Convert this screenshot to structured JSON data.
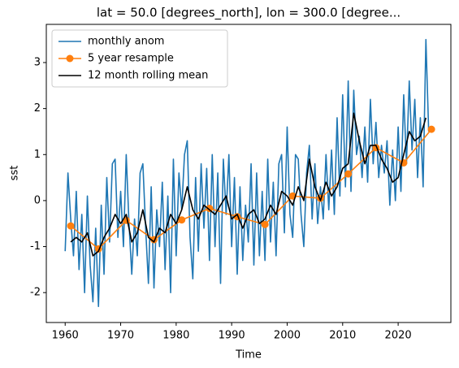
{
  "chart_data": {
    "type": "line",
    "title": "lat = 50.0 [degrees_north], lon = 300.0 [degree...",
    "xlabel": "Time",
    "ylabel": "sst",
    "xlim": [
      1956.6,
      2029.5
    ],
    "ylim": [
      -2.65,
      3.83
    ],
    "xticks": [
      1960,
      1970,
      1980,
      1990,
      2000,
      2010,
      2020
    ],
    "yticks": [
      -2,
      -1,
      0,
      1,
      2,
      3
    ],
    "legend": "upper left",
    "series": [
      {
        "name": "monthly anom",
        "color": "#1f77b4",
        "marker": false,
        "x": [
          1960,
          1960.5,
          1961,
          1961.5,
          1962,
          1962.5,
          1963,
          1963.5,
          1964,
          1964.5,
          1965,
          1965.5,
          1966,
          1966.5,
          1967,
          1967.5,
          1968,
          1968.5,
          1969,
          1969.5,
          1970,
          1970.5,
          1971,
          1971.5,
          1972,
          1972.5,
          1973,
          1973.5,
          1974,
          1974.5,
          1975,
          1975.5,
          1976,
          1976.5,
          1977,
          1977.5,
          1978,
          1978.5,
          1979,
          1979.5,
          1980,
          1980.5,
          1981,
          1981.5,
          1982,
          1982.5,
          1983,
          1983.5,
          1984,
          1984.5,
          1985,
          1985.5,
          1986,
          1986.5,
          1987,
          1987.5,
          1988,
          1988.5,
          1989,
          1989.5,
          1990,
          1990.5,
          1991,
          1991.5,
          1992,
          1992.5,
          1993,
          1993.5,
          1994,
          1994.5,
          1995,
          1995.5,
          1996,
          1996.5,
          1997,
          1997.5,
          1998,
          1998.5,
          1999,
          1999.5,
          2000,
          2000.5,
          2001,
          2001.5,
          2002,
          2002.5,
          2003,
          2003.5,
          2004,
          2004.5,
          2005,
          2005.5,
          2006,
          2006.5,
          2007,
          2007.5,
          2008,
          2008.5,
          2009,
          2009.5,
          2010,
          2010.5,
          2011,
          2011.5,
          2012,
          2012.5,
          2013,
          2013.5,
          2014,
          2014.5,
          2015,
          2015.5,
          2016,
          2016.5,
          2017,
          2017.5,
          2018,
          2018.5,
          2019,
          2019.5,
          2020,
          2020.5,
          2021,
          2021.5,
          2022,
          2022.5,
          2023,
          2023.5,
          2024,
          2024.5,
          2025,
          2025.5
        ],
        "values": [
          -1.1,
          0.6,
          -0.4,
          -1.2,
          0.2,
          -1.5,
          -0.3,
          -2.0,
          0.1,
          -1.4,
          -2.2,
          -0.6,
          -2.3,
          -0.1,
          -1.6,
          0.5,
          -0.9,
          0.8,
          0.9,
          -0.8,
          0.2,
          -1.0,
          1.0,
          -0.5,
          -1.6,
          -0.4,
          -1.2,
          0.6,
          0.8,
          -0.6,
          -1.8,
          0.3,
          -1.9,
          -0.2,
          -1.0,
          0.4,
          -1.5,
          0.1,
          -2.0,
          0.9,
          -1.2,
          0.6,
          -0.2,
          1.0,
          1.3,
          -0.8,
          -1.7,
          0.5,
          -1.1,
          0.8,
          -0.6,
          0.7,
          -1.3,
          1.0,
          -1.0,
          0.6,
          -1.8,
          0.9,
          -0.3,
          1.0,
          -1.0,
          0.5,
          -1.6,
          0.3,
          -1.3,
          -0.1,
          -0.9,
          0.8,
          -1.4,
          0.6,
          -1.2,
          0.2,
          -1.3,
          0.9,
          -0.9,
          0.4,
          -1.2,
          0.8,
          1.0,
          -0.7,
          1.6,
          -0.3,
          -0.8,
          1.0,
          0.9,
          -0.3,
          -1.0,
          0.6,
          1.2,
          -0.4,
          0.8,
          -0.5,
          0.3,
          -0.4,
          1.0,
          -0.2,
          1.1,
          -0.3,
          1.8,
          0.1,
          2.3,
          0.3,
          2.6,
          0.2,
          2.4,
          1.0,
          1.4,
          0.5,
          1.6,
          0.4,
          2.2,
          0.8,
          1.7,
          0.5,
          1.2,
          0.6,
          1.3,
          -0.1,
          1.1,
          0.0,
          1.6,
          0.2,
          2.3,
          0.8,
          2.6,
          1.1,
          2.2,
          0.5,
          1.8,
          0.3,
          3.5,
          1.5
        ]
      },
      {
        "name": "5 year resample",
        "color": "#ff7f0e",
        "marker": true,
        "x": [
          1961,
          1966,
          1971,
          1976,
          1981,
          1986,
          1991,
          1996,
          2001,
          2006,
          2011,
          2016,
          2021,
          2026
        ],
        "values": [
          -0.55,
          -1.05,
          -0.43,
          -0.85,
          -0.42,
          -0.17,
          -0.35,
          -0.52,
          0.1,
          0.05,
          0.58,
          1.15,
          0.82,
          1.55
        ]
      },
      {
        "name": "12 month rolling mean",
        "color": "#000000",
        "marker": false,
        "x": [
          1961,
          1962,
          1963,
          1964,
          1965,
          1966,
          1967,
          1968,
          1969,
          1970,
          1971,
          1972,
          1973,
          1974,
          1975,
          1976,
          1977,
          1978,
          1979,
          1980,
          1981,
          1982,
          1983,
          1984,
          1985,
          1986,
          1987,
          1988,
          1989,
          1990,
          1991,
          1992,
          1993,
          1994,
          1995,
          1996,
          1997,
          1998,
          1999,
          2000,
          2001,
          2002,
          2003,
          2004,
          2005,
          2006,
          2007,
          2008,
          2009,
          2010,
          2011,
          2012,
          2013,
          2014,
          2015,
          2016,
          2017,
          2018,
          2019,
          2020,
          2021,
          2022,
          2023,
          2024,
          2025
        ],
        "values": [
          -0.9,
          -0.8,
          -0.9,
          -0.7,
          -1.2,
          -1.1,
          -0.8,
          -0.6,
          -0.3,
          -0.5,
          -0.3,
          -0.9,
          -0.7,
          -0.2,
          -0.8,
          -0.9,
          -0.6,
          -0.7,
          -0.3,
          -0.5,
          -0.2,
          0.3,
          -0.2,
          -0.4,
          -0.1,
          -0.2,
          -0.3,
          -0.1,
          0.1,
          -0.4,
          -0.3,
          -0.6,
          -0.3,
          -0.2,
          -0.5,
          -0.4,
          -0.1,
          -0.3,
          0.2,
          0.1,
          -0.1,
          0.3,
          0.0,
          0.9,
          0.3,
          0.0,
          0.4,
          0.1,
          0.3,
          0.7,
          0.8,
          1.9,
          1.3,
          0.8,
          1.2,
          1.2,
          0.9,
          0.7,
          0.4,
          0.5,
          1.0,
          1.5,
          1.3,
          1.4,
          1.8
        ]
      }
    ]
  }
}
